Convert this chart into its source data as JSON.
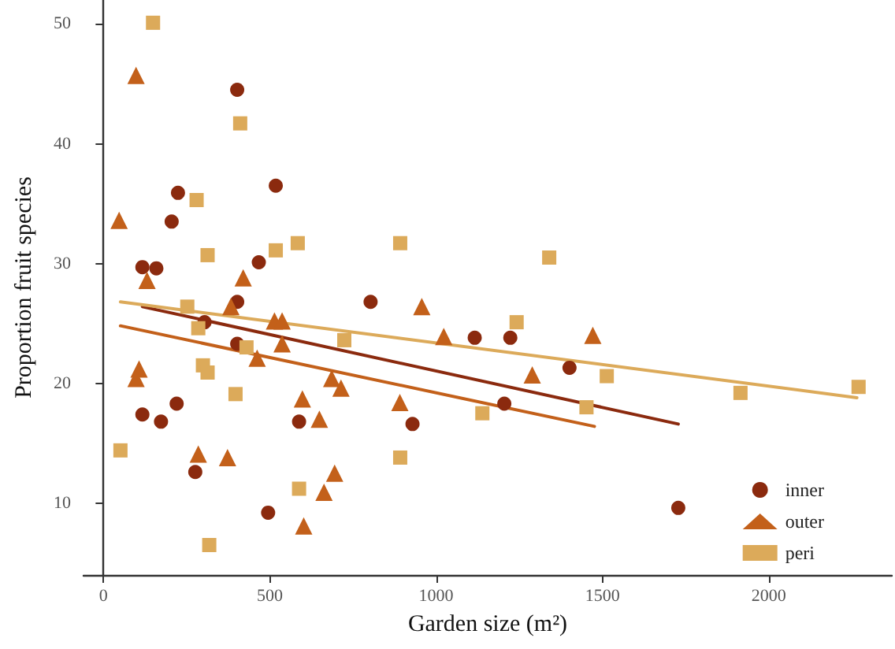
{
  "chart_data": {
    "type": "scatter",
    "xlabel": "Garden size (m²)",
    "ylabel": "Proportion fruit species",
    "xlim": [
      -60,
      2370
    ],
    "ylim": [
      4,
      52
    ],
    "xticks": [
      0,
      500,
      1000,
      1500,
      2000
    ],
    "yticks": [
      10,
      20,
      30,
      40,
      50
    ],
    "grid": false,
    "legend": "right",
    "series": [
      {
        "name": "inner",
        "color": "#8b2a0e",
        "marker": "circle",
        "x": [
          402,
          518,
          224,
          205,
          117,
          159,
          467,
          402,
          803,
          304,
          402,
          1116,
          1223,
          220,
          117,
          173,
          588,
          929,
          276,
          495,
          1205,
          1401,
          1728
        ],
        "values": [
          44.5,
          36.5,
          35.9,
          33.5,
          29.7,
          29.6,
          30.1,
          26.8,
          26.8,
          25.1,
          23.3,
          23.8,
          23.8,
          18.3,
          17.4,
          16.8,
          16.8,
          16.6,
          12.6,
          9.2,
          18.3,
          21.3,
          9.6
        ]
      },
      {
        "name": "outer",
        "color": "#c3601a",
        "marker": "triangle",
        "x": [
          98,
          47,
          131,
          420,
          383,
          514,
          537,
          537,
          462,
          107,
          98,
          957,
          1023,
          1289,
          1471,
          891,
          598,
          686,
          714,
          649,
          285,
          373,
          695,
          663,
          602
        ],
        "values": [
          45.7,
          33.6,
          28.6,
          28.8,
          26.4,
          25.2,
          25.2,
          23.3,
          22.1,
          21.2,
          20.4,
          26.4,
          23.9,
          20.7,
          24.0,
          18.4,
          18.7,
          20.4,
          19.6,
          17.0,
          14.1,
          13.8,
          12.5,
          10.9,
          8.1
        ]
      },
      {
        "name": "peri",
        "color": "#dcaa5a",
        "marker": "square",
        "x": [
          149,
          411,
          280,
          313,
          518,
          584,
          252,
          285,
          430,
          724,
          299,
          313,
          397,
          51,
          588,
          318,
          892,
          1242,
          1139,
          1452,
          1513,
          892,
          1340,
          1915,
          2270
        ],
        "values": [
          50.1,
          41.7,
          35.3,
          30.7,
          31.1,
          31.7,
          26.4,
          24.6,
          23.0,
          23.6,
          21.5,
          20.9,
          19.1,
          14.4,
          11.2,
          6.5,
          13.8,
          25.1,
          17.5,
          18.0,
          20.6,
          31.7,
          30.5,
          19.2,
          19.7
        ]
      },
      {
        "type": "line",
        "color": "#8b2a0e",
        "marker": "none",
        "line_style": "solid",
        "x": [
          117,
          1728
        ],
        "values": [
          26.4,
          16.6
        ]
      },
      {
        "type": "line",
        "color": "#c3601a",
        "marker": "none",
        "line_style": "solid",
        "x": [
          51,
          1476
        ],
        "values": [
          24.8,
          16.4
        ]
      },
      {
        "type": "line",
        "color": "#dcaa5a",
        "marker": "none",
        "line_style": "solid",
        "x": [
          51,
          2265
        ],
        "values": [
          26.8,
          18.8
        ]
      }
    ]
  }
}
